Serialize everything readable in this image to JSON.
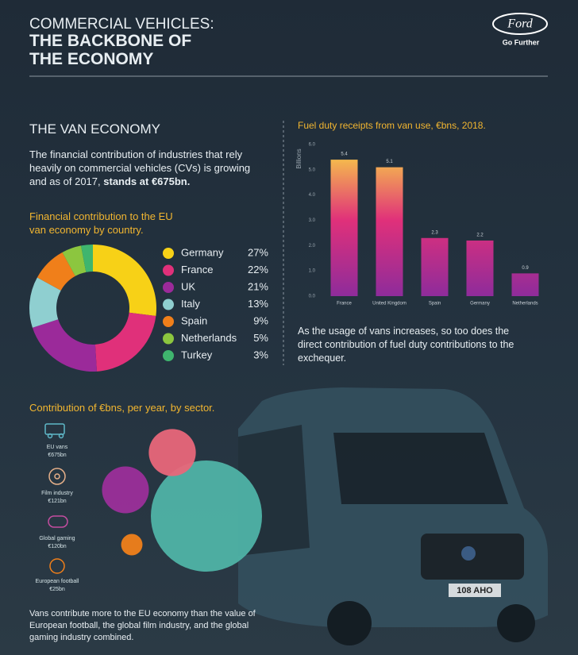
{
  "header": {
    "kicker": "COMMERCIAL VEHICLES:",
    "title_line_1": "THE BACKBONE OF",
    "title_line_2": "THE ECONOMY",
    "logo": "Ford",
    "tagline": "Go Further"
  },
  "van_economy": {
    "heading": "THE VAN ECONOMY",
    "intro": "The financial contribution of industries that rely heavily on commercial vehicles (CVs) is growing and as of 2017,",
    "intro_emphasis": "stands at €675bn."
  },
  "fuel_caption": "As the usage of vans increases, so too does the direct contribution of fuel duty contributions to the exchequer.",
  "sector_caption": "Vans contribute more to the EU economy than the value of European football, the global film industry, and the global gaming industry combined.",
  "chart_data": [
    {
      "type": "pie",
      "title": "Financial contribution to the EU van economy by country.",
      "categories": [
        "Germany",
        "France",
        "UK",
        "Italy",
        "Spain",
        "Netherlands",
        "Turkey"
      ],
      "values": [
        27,
        22,
        21,
        13,
        9,
        5,
        3
      ],
      "value_labels": [
        "27%",
        "22%",
        "21%",
        "13%",
        "9%",
        "5%",
        "3%"
      ],
      "colors": [
        "#f7d117",
        "#e0307a",
        "#9b2a9a",
        "#8fcfd0",
        "#f07f1a",
        "#8cc63f",
        "#3fb56e"
      ]
    },
    {
      "type": "bar",
      "title": "Fuel duty receipts from van use, €bns, 2018.",
      "y_label": "Billions",
      "categories": [
        "France",
        "United Kingdom",
        "Spain",
        "Germany",
        "Netherlands"
      ],
      "values": [
        5.4,
        5.1,
        2.3,
        2.2,
        0.9
      ],
      "ylim": [
        0,
        6
      ],
      "yticks": [
        {
          "value": 0,
          "label": "0.0"
        },
        {
          "value": 1,
          "label": "1.0"
        },
        {
          "value": 2,
          "label": "2.0"
        },
        {
          "value": 3,
          "label": "3.0"
        },
        {
          "value": 4,
          "label": "4.0"
        },
        {
          "value": 5,
          "label": "5.0"
        },
        {
          "value": 6,
          "label": "6.0"
        }
      ],
      "grid": false,
      "colors": [
        "#f7c948",
        "#e0307a",
        "#8e2c9b"
      ]
    },
    {
      "type": "bubble",
      "title": "Contribution of €bns, per year, by sector.",
      "categories": [
        "EU vans",
        "Film industry",
        "Global gaming",
        "European football"
      ],
      "values": [
        675,
        121,
        120,
        25
      ],
      "value_labels": [
        "€675bn",
        "€121bn",
        "€120bn",
        "€25bn"
      ],
      "colors": [
        "#4fb3a6",
        "#e8677a",
        "#9b2f9a",
        "#f07f1a"
      ]
    }
  ]
}
